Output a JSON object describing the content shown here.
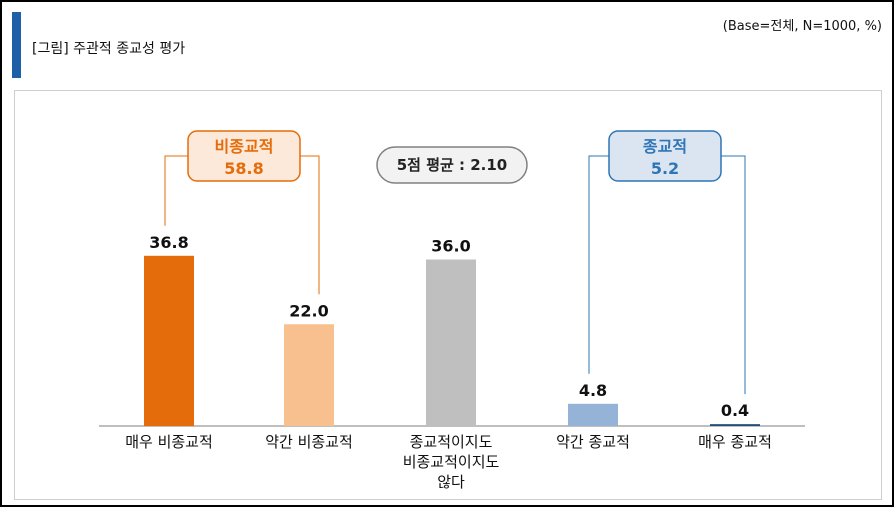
{
  "header": {
    "title": "[그림] 주관적 종교성 평가",
    "base_note": "(Base=전체, N=1000, %)"
  },
  "chart_data": {
    "type": "bar",
    "categories": [
      [
        "매우 비종교적"
      ],
      [
        "약간 비종교적"
      ],
      [
        "종교적이지도",
        "비종교적이지도",
        "않다"
      ],
      [
        "약간 종교적"
      ],
      [
        "매우 종교적"
      ]
    ],
    "values": [
      36.8,
      22.0,
      36.0,
      4.8,
      0.4
    ],
    "value_labels": [
      "36.8",
      "22.0",
      "36.0",
      "4.8",
      "0.4"
    ],
    "colors": [
      "#e46c0a",
      "#f9c08f",
      "#bfbfbf",
      "#95b3d7",
      "#1f4e79"
    ],
    "ylim": [
      0,
      40
    ],
    "groups": [
      {
        "label": "비종교적",
        "value": "58.8",
        "color": "#e46c0a",
        "fill": "#fde9d9",
        "members": [
          0,
          1
        ]
      },
      {
        "label": "종교적",
        "value": "5.2",
        "color": "#2e75b6",
        "fill": "#dbe5f1",
        "members": [
          3,
          4
        ]
      }
    ],
    "average_label": "5점 평균 : 2.10"
  }
}
